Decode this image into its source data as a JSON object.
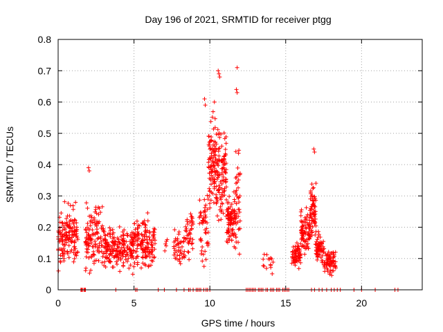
{
  "chart_data": {
    "type": "scatter",
    "title": "Day 196 of 2021, SRMTID for receiver ptgg",
    "xlabel": "GPS time / hours",
    "ylabel": "SRMTID / TECUs",
    "xlim": [
      0,
      24
    ],
    "ylim": [
      0,
      0.8
    ],
    "x_ticks": [
      0,
      5,
      10,
      15,
      20
    ],
    "x_tick_labels": [
      "0",
      "5",
      "10",
      "15",
      "20"
    ],
    "y_ticks": [
      0,
      0.1,
      0.2,
      0.3,
      0.4,
      0.5,
      0.6,
      0.7,
      0.8
    ],
    "y_tick_labels": [
      "0",
      "0.1",
      "0.2",
      "0.3",
      "0.4",
      "0.5",
      "0.6",
      "0.7",
      "0.8"
    ],
    "grid": true,
    "marker": "+",
    "color": "#ff0000",
    "series": [
      {
        "name": "SRMTID",
        "clusters": [
          {
            "t0": 0.0,
            "t1": 1.3,
            "base": 0.17,
            "spread": 0.09,
            "n": 150
          },
          {
            "t0": 1.8,
            "t1": 3.0,
            "base": 0.17,
            "spread": 0.1,
            "n": 120
          },
          {
            "t0": 3.0,
            "t1": 4.2,
            "base": 0.13,
            "spread": 0.07,
            "n": 120
          },
          {
            "t0": 4.2,
            "t1": 5.0,
            "base": 0.13,
            "spread": 0.07,
            "n": 80
          },
          {
            "t0": 5.0,
            "t1": 6.4,
            "base": 0.15,
            "spread": 0.08,
            "n": 140
          },
          {
            "t0": 7.0,
            "t1": 7.2,
            "base": 0.14,
            "spread": 0.03,
            "n": 5
          },
          {
            "t0": 7.6,
            "t1": 8.4,
            "base": 0.14,
            "spread": 0.07,
            "n": 45
          },
          {
            "t0": 8.4,
            "t1": 8.9,
            "base": 0.17,
            "spread": 0.07,
            "n": 40
          },
          {
            "t0": 9.3,
            "t1": 9.9,
            "base": 0.22,
            "spread": 0.15,
            "n": 50
          },
          {
            "t0": 9.9,
            "t1": 10.4,
            "base": 0.4,
            "spread": 0.14,
            "n": 90
          },
          {
            "t0": 10.4,
            "t1": 11.1,
            "base": 0.37,
            "spread": 0.16,
            "n": 110
          },
          {
            "t0": 11.1,
            "t1": 11.7,
            "base": 0.22,
            "spread": 0.08,
            "n": 90
          },
          {
            "t0": 11.7,
            "t1": 12.0,
            "base": 0.28,
            "spread": 0.16,
            "n": 40
          },
          {
            "t0": 13.5,
            "t1": 14.2,
            "base": 0.1,
            "spread": 0.05,
            "n": 15
          },
          {
            "t0": 15.4,
            "t1": 16.0,
            "base": 0.11,
            "spread": 0.04,
            "n": 60
          },
          {
            "t0": 16.0,
            "t1": 16.6,
            "base": 0.18,
            "spread": 0.07,
            "n": 80
          },
          {
            "t0": 16.6,
            "t1": 17.0,
            "base": 0.24,
            "spread": 0.09,
            "n": 70
          },
          {
            "t0": 17.0,
            "t1": 17.5,
            "base": 0.13,
            "spread": 0.05,
            "n": 60
          },
          {
            "t0": 17.5,
            "t1": 18.3,
            "base": 0.09,
            "spread": 0.04,
            "n": 70
          }
        ],
        "peaks": [
          {
            "x": 2.0,
            "y": 0.39
          },
          {
            "x": 2.05,
            "y": 0.38
          },
          {
            "x": 9.65,
            "y": 0.61
          },
          {
            "x": 9.7,
            "y": 0.59
          },
          {
            "x": 10.3,
            "y": 0.6
          },
          {
            "x": 10.55,
            "y": 0.7
          },
          {
            "x": 10.6,
            "y": 0.69
          },
          {
            "x": 10.65,
            "y": 0.68
          },
          {
            "x": 11.8,
            "y": 0.71
          },
          {
            "x": 11.75,
            "y": 0.64
          },
          {
            "x": 11.8,
            "y": 0.63
          },
          {
            "x": 16.85,
            "y": 0.45
          },
          {
            "x": 16.9,
            "y": 0.44
          }
        ],
        "zero_points": [
          1.5,
          1.55,
          1.6,
          1.7,
          1.75,
          1.8,
          3.8,
          5.1,
          5.2,
          6.6,
          7.0,
          7.8,
          8.3,
          8.6,
          8.7,
          8.9,
          9.1,
          9.2,
          9.3,
          9.4,
          9.6,
          9.75,
          9.85,
          10.0,
          12.4,
          12.5,
          12.6,
          12.7,
          12.8,
          12.9,
          13.0,
          13.2,
          13.3,
          13.4,
          13.5,
          13.7,
          13.8,
          14.0,
          14.1,
          14.2,
          14.4,
          14.5,
          14.6,
          14.8,
          14.9,
          15.0,
          15.1,
          15.2,
          16.7,
          16.9,
          17.2,
          17.4,
          17.7,
          18.0,
          18.2,
          18.4,
          18.6,
          19.5,
          20.0,
          20.9,
          22.2,
          22.4
        ]
      }
    ]
  }
}
